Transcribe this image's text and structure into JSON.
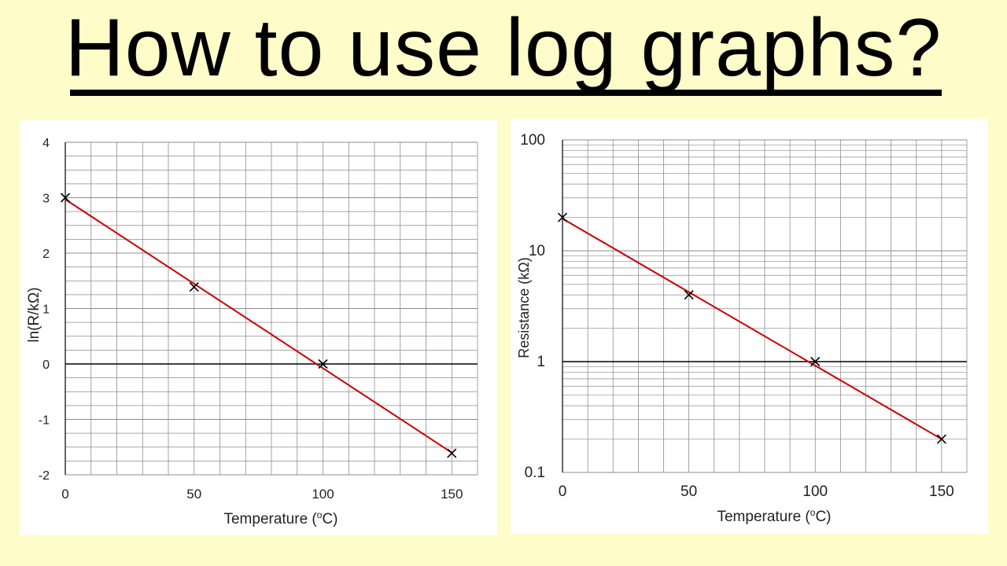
{
  "title": "How to use log graphs?",
  "chart_data": [
    {
      "type": "scatter",
      "xlabel": "Temperature (",
      "xlabel_sup": "o",
      "xlabel_end": "C)",
      "ylabel": "ln(R/kΩ)",
      "x_ticks": [
        "0",
        "50",
        "100",
        "150"
      ],
      "y_ticks": [
        "-2",
        "-1",
        "0",
        "1",
        "2",
        "3",
        "4"
      ],
      "xlim": [
        0,
        160
      ],
      "ylim": [
        -2,
        4
      ],
      "y_scale": "linear",
      "grid": true,
      "series": [
        {
          "points": [
            {
              "x": 0,
              "y": 3.0
            },
            {
              "x": 50,
              "y": 1.39
            },
            {
              "x": 100,
              "y": 0.0
            },
            {
              "x": 150,
              "y": -1.61
            }
          ],
          "marker": "x",
          "marker_color": "#000000"
        }
      ],
      "trendline": {
        "x": [
          0,
          150
        ],
        "y": [
          2.97,
          -1.6
        ],
        "color": "#cc0000"
      }
    },
    {
      "type": "scatter",
      "xlabel": "Temperature (",
      "xlabel_sup": "o",
      "xlabel_end": "C)",
      "ylabel": "Resistance (kΩ)",
      "x_ticks": [
        "0",
        "50",
        "100",
        "150"
      ],
      "y_ticks": [
        "0.1",
        "1",
        "10",
        "100"
      ],
      "xlim": [
        0,
        160
      ],
      "ylim": [
        0.1,
        100
      ],
      "y_scale": "log",
      "grid": true,
      "series": [
        {
          "points": [
            {
              "x": 0,
              "y": 20
            },
            {
              "x": 50,
              "y": 4
            },
            {
              "x": 100,
              "y": 1
            },
            {
              "x": 150,
              "y": 0.2
            }
          ],
          "marker": "x",
          "marker_color": "#000000"
        }
      ],
      "trendline": {
        "x": [
          0,
          150
        ],
        "y": [
          19.5,
          0.2
        ],
        "color": "#cc0000"
      }
    }
  ]
}
